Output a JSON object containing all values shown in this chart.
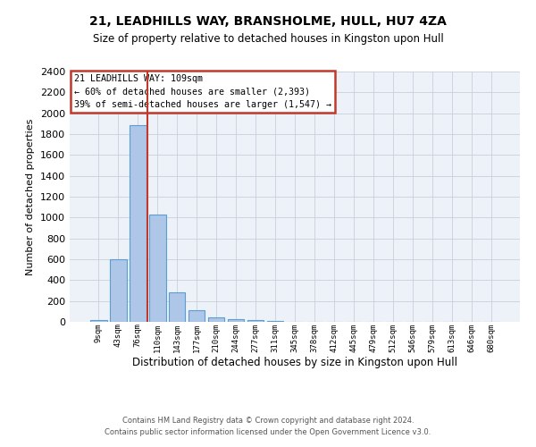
{
  "title": "21, LEADHILLS WAY, BRANSHOLME, HULL, HU7 4ZA",
  "subtitle": "Size of property relative to detached houses in Kingston upon Hull",
  "xlabel": "Distribution of detached houses by size in Kingston upon Hull",
  "ylabel": "Number of detached properties",
  "footer_line1": "Contains HM Land Registry data © Crown copyright and database right 2024.",
  "footer_line2": "Contains public sector information licensed under the Open Government Licence v3.0.",
  "bar_labels": [
    "9sqm",
    "43sqm",
    "76sqm",
    "110sqm",
    "143sqm",
    "177sqm",
    "210sqm",
    "244sqm",
    "277sqm",
    "311sqm",
    "345sqm",
    "378sqm",
    "412sqm",
    "445sqm",
    "479sqm",
    "512sqm",
    "546sqm",
    "579sqm",
    "613sqm",
    "646sqm",
    "680sqm"
  ],
  "bar_values": [
    15,
    600,
    1890,
    1030,
    285,
    110,
    42,
    30,
    15,
    5,
    0,
    0,
    0,
    0,
    0,
    0,
    0,
    0,
    0,
    0,
    0
  ],
  "bar_color": "#aec6e8",
  "bar_edge_color": "#5a9fd4",
  "vline_x": 2.5,
  "vline_color": "#c0392b",
  "annotation_text": "21 LEADHILLS WAY: 109sqm\n← 60% of detached houses are smaller (2,393)\n39% of semi-detached houses are larger (1,547) →",
  "annotation_box_color": "white",
  "annotation_box_edge": "#c0392b",
  "ylim_max": 2400,
  "yticks": [
    0,
    200,
    400,
    600,
    800,
    1000,
    1200,
    1400,
    1600,
    1800,
    2000,
    2200,
    2400
  ],
  "grid_color": "#c8d0dc",
  "bg_color": "#edf1f8"
}
